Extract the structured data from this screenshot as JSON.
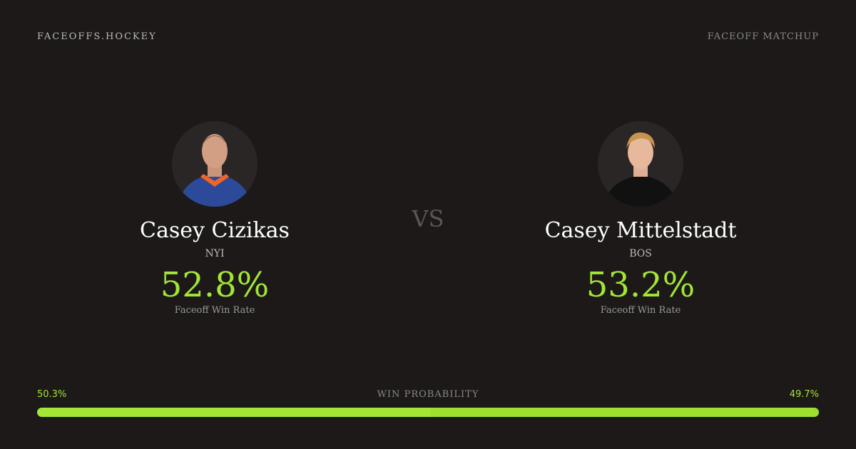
{
  "header": {
    "brand": "FACEOFFS.HOCKEY",
    "tag": "FACEOFF MATCHUP"
  },
  "players": [
    {
      "name": "Casey Cizikas",
      "team": "NYI",
      "win_rate": "52.8%",
      "win_rate_label": "Faceoff Win Rate"
    },
    {
      "name": "Casey Mittelstadt",
      "team": "BOS",
      "win_rate": "53.2%",
      "win_rate_label": "Faceoff Win Rate"
    }
  ],
  "versus": "VS",
  "win_probability": {
    "title": "WIN PROBABILITY",
    "left": {
      "value": 50.3,
      "label": "50.3%"
    },
    "right": {
      "value": 49.7,
      "label": "49.7%"
    }
  }
}
